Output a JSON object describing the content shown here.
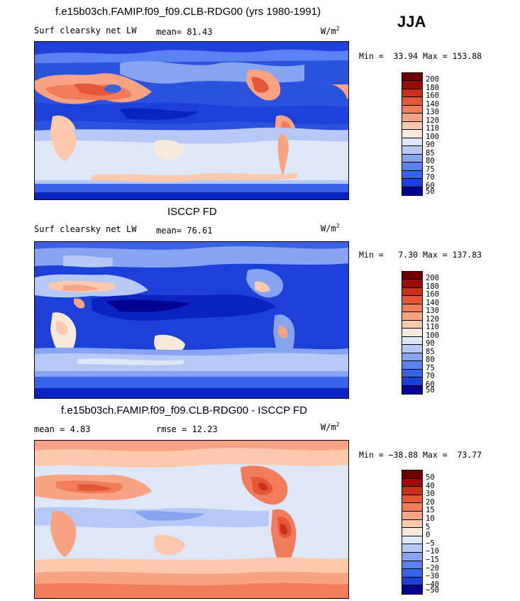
{
  "season": "JJA",
  "panels": [
    {
      "title": "f.e15b03ch.FAMIP.f09_f09.CLB-RDG00 (yrs 1980-1991)",
      "variable": "Surf clearsky net LW",
      "stat1": "mean=  81.43",
      "stat2": "",
      "units": "W/m",
      "units_exp": "2",
      "minmax": "Min =  33.94 Max = 153.88",
      "scale": "abs",
      "levels": [
        "200",
        "180",
        "160",
        "140",
        "130",
        "120",
        "110",
        "100",
        "90",
        "85",
        "80",
        "75",
        "70",
        "60",
        "50"
      ]
    },
    {
      "title": "ISCCP FD",
      "variable": "Surf clearsky net LW",
      "stat1": "mean=  76.61",
      "stat2": "",
      "units": "W/m",
      "units_exp": "2",
      "minmax": "Min =   7.30 Max = 137.83",
      "scale": "abs",
      "levels": [
        "200",
        "180",
        "160",
        "140",
        "130",
        "120",
        "110",
        "100",
        "90",
        "85",
        "80",
        "75",
        "70",
        "60",
        "50"
      ]
    },
    {
      "title": "f.e15b03ch.FAMIP.f09_f09.CLB-RDG00 - ISCCP FD",
      "variable": "",
      "stat1": "mean =   4.83",
      "stat2": "rmse =  12.23",
      "units": "W/m",
      "units_exp": "2",
      "minmax": "Min = −38.88 Max =  73.77",
      "scale": "diff",
      "levels": [
        "50",
        "40",
        "30",
        "20",
        "15",
        "10",
        "5",
        "0",
        "−5",
        "−10",
        "−15",
        "−20",
        "−30",
        "−40",
        "−50"
      ]
    }
  ],
  "colors": {
    "palette": [
      "#04038f",
      "#0a22c0",
      "#1d40d8",
      "#3a62e8",
      "#5a82f0",
      "#86a4f2",
      "#b6c8f5",
      "#dde7f8",
      "#f7e8dc",
      "#fcc9ad",
      "#f8a383",
      "#f07c5c",
      "#e45638",
      "#c92f17",
      "#9b0c06",
      "#6e0000"
    ]
  }
}
